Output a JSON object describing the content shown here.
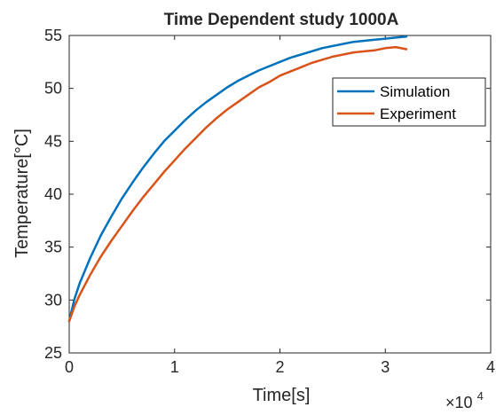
{
  "chart_data": {
    "type": "line",
    "title": "Time Dependent study 1000A",
    "xlabel": "Time[s]",
    "ylabel": "Temperature[°C]",
    "x_multiplier": "×10",
    "x_multiplier_exp": "4",
    "xlim": [
      0,
      40000
    ],
    "ylim": [
      25,
      55
    ],
    "x_ticks": [
      0,
      10000,
      20000,
      30000,
      40000
    ],
    "x_tick_labels": [
      "0",
      "1",
      "2",
      "3",
      "4"
    ],
    "y_ticks": [
      25,
      30,
      35,
      40,
      45,
      50,
      55
    ],
    "y_tick_labels": [
      "25",
      "30",
      "35",
      "40",
      "45",
      "50",
      "55"
    ],
    "grid": false,
    "legend_position": "top-right",
    "series": [
      {
        "name": "Simulation",
        "color": "#0072BD",
        "x": [
          0,
          500,
          1000,
          2000,
          3000,
          4000,
          5000,
          6000,
          7000,
          8000,
          9000,
          10000,
          11000,
          12000,
          13000,
          14000,
          15000,
          16000,
          17000,
          18000,
          19000,
          20000,
          21000,
          22000,
          23000,
          24000,
          25000,
          26000,
          27000,
          28000,
          29000,
          30000,
          31000,
          32000
        ],
        "y": [
          28.0,
          30.1,
          31.6,
          34.0,
          36.1,
          37.9,
          39.6,
          41.1,
          42.5,
          43.8,
          45.0,
          46.0,
          47.0,
          47.9,
          48.7,
          49.4,
          50.1,
          50.7,
          51.2,
          51.7,
          52.1,
          52.5,
          52.9,
          53.2,
          53.5,
          53.8,
          54.0,
          54.2,
          54.4,
          54.5,
          54.6,
          54.7,
          54.8,
          54.9
        ]
      },
      {
        "name": "Experiment",
        "color": "#D95319",
        "x": [
          0,
          500,
          1000,
          2000,
          3000,
          4000,
          5000,
          6000,
          7000,
          8000,
          9000,
          10000,
          11000,
          12000,
          13000,
          14000,
          15000,
          16000,
          17000,
          18000,
          19000,
          20000,
          21000,
          22000,
          23000,
          24000,
          25000,
          26000,
          27000,
          28000,
          29000,
          30000,
          31000,
          32000
        ],
        "y": [
          28.0,
          29.4,
          30.5,
          32.4,
          34.1,
          35.6,
          37.0,
          38.4,
          39.7,
          40.9,
          42.1,
          43.2,
          44.3,
          45.3,
          46.3,
          47.2,
          48.0,
          48.7,
          49.4,
          50.1,
          50.6,
          51.2,
          51.6,
          52.0,
          52.4,
          52.7,
          53.0,
          53.2,
          53.4,
          53.5,
          53.6,
          53.8,
          53.9,
          53.7
        ]
      }
    ]
  }
}
